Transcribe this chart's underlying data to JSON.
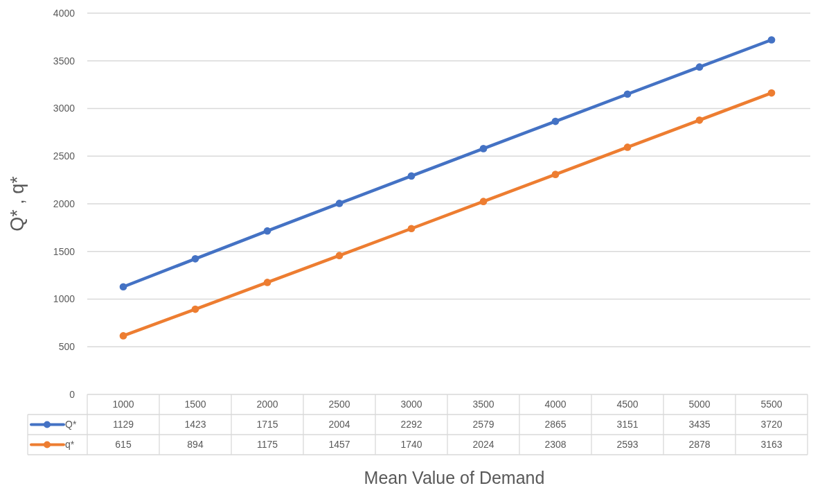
{
  "chart_data": {
    "type": "line",
    "xlabel": "Mean Value of Demand",
    "ylabel": "Q* , q*",
    "categories": [
      "1000",
      "1500",
      "2000",
      "2500",
      "3000",
      "3500",
      "4000",
      "4500",
      "5000",
      "5500"
    ],
    "series": [
      {
        "name": "Q*",
        "color": "#4472c4",
        "values": [
          1129,
          1423,
          1715,
          2004,
          2292,
          2579,
          2865,
          3151,
          3435,
          3720
        ]
      },
      {
        "name": "q*",
        "color": "#ed7d31",
        "values": [
          615,
          894,
          1175,
          1457,
          1740,
          2024,
          2308,
          2593,
          2878,
          3163
        ]
      }
    ],
    "ylim": [
      0,
      4000
    ],
    "yticks": [
      0,
      500,
      1000,
      1500,
      2000,
      2500,
      3000,
      3500,
      4000
    ],
    "grid": "y",
    "legend": "bottom left",
    "marker": "circle",
    "line_style": "solid",
    "data_labels": true
  }
}
